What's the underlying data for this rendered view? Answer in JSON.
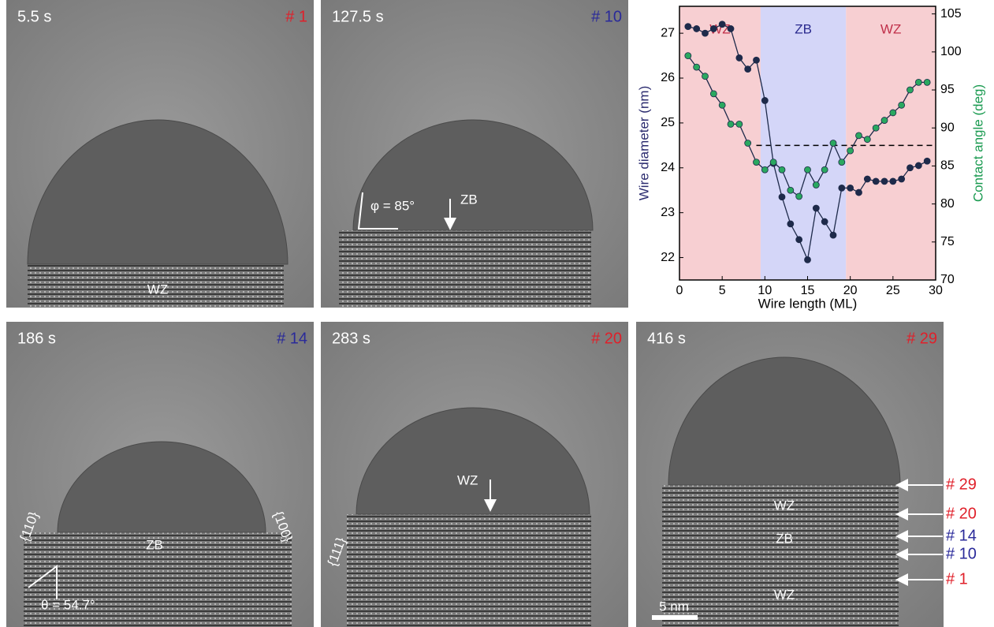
{
  "panels": [
    {
      "time": "5.5 s",
      "number": "# 1",
      "number_color": "#e0202a",
      "annotations": [
        "WZ"
      ]
    },
    {
      "time": "127.5 s",
      "number": "# 10",
      "number_color": "#2a2a9a",
      "annotations": [
        "φ = 85°",
        "ZB"
      ]
    },
    {
      "time": "186 s",
      "number": "# 14",
      "number_color": "#2a2a9a",
      "annotations": [
        "{110}",
        "{100}",
        "ZB",
        "θ = 54.7°"
      ]
    },
    {
      "time": "283 s",
      "number": "# 20",
      "number_color": "#e0202a",
      "annotations": [
        "{111}",
        "WZ"
      ]
    },
    {
      "time": "416 s",
      "number": "# 29",
      "number_color": "#e0202a",
      "annotations": [
        "WZ",
        "ZB",
        "WZ",
        "5 nm"
      ]
    }
  ],
  "side_labels": [
    {
      "text": "# 29",
      "color": "#e0202a"
    },
    {
      "text": "# 20",
      "color": "#e0202a"
    },
    {
      "text": "# 14",
      "color": "#2a2a9a"
    },
    {
      "text": "# 10",
      "color": "#2a2a9a"
    },
    {
      "text": "# 1",
      "color": "#e0202a"
    }
  ],
  "chart_data": {
    "type": "line",
    "xlabel": "Wire length (ML)",
    "ylabel": "Wire diameter (nm)",
    "y2label": "Contact angle (deg)",
    "ylabel_color": "#2a2a6e",
    "y2label_color": "#1a9a50",
    "x": [
      1,
      2,
      3,
      4,
      5,
      6,
      7,
      8,
      9,
      10,
      11,
      12,
      13,
      14,
      15,
      16,
      17,
      18,
      19,
      20,
      21,
      22,
      23,
      24,
      25,
      26,
      27,
      28,
      29
    ],
    "series": [
      {
        "color": "#1e2a4a",
        "marker_color": "#1e2a4a",
        "axis": "y",
        "values": [
          27.15,
          27.1,
          27.0,
          27.1,
          27.2,
          27.1,
          26.45,
          26.2,
          26.4,
          25.5,
          24.1,
          23.35,
          22.75,
          22.4,
          21.95,
          23.1,
          22.8,
          22.5,
          23.55,
          23.55,
          23.45,
          23.75,
          23.7,
          23.7,
          23.7,
          23.75,
          24.0,
          24.05,
          24.15
        ]
      },
      {
        "color": "#1e2a4a",
        "marker_color": "#2aa860",
        "axis": "y2",
        "values": [
          99.5,
          98,
          96.8,
          94.5,
          93,
          90.5,
          90.5,
          88,
          85.5,
          84.5,
          85.5,
          84.5,
          81.8,
          81,
          84.5,
          82.5,
          84.5,
          88,
          85.5,
          87,
          89,
          88.5,
          90,
          91,
          92,
          93,
          95,
          96,
          96
        ]
      }
    ],
    "regions": [
      {
        "label": "WZ",
        "start": 0,
        "end": 9.5,
        "color": "#f7cfd2",
        "label_color": "#c0304a"
      },
      {
        "label": "ZB",
        "start": 9.5,
        "end": 19.5,
        "color": "#d4d6f8",
        "label_color": "#2a2a8e"
      },
      {
        "label": "WZ",
        "start": 19.5,
        "end": 30,
        "color": "#f7cfd2",
        "label_color": "#c0304a"
      }
    ],
    "reference_line": 24.5,
    "xlim": [
      0,
      30
    ],
    "xticks": [
      0,
      5,
      10,
      15,
      20,
      25,
      30
    ],
    "ylim": [
      21.5,
      27.6
    ],
    "yticks": [
      22,
      23,
      24,
      25,
      26,
      27
    ],
    "y2lim": [
      70,
      106
    ],
    "y2ticks": [
      70,
      75,
      80,
      85,
      90,
      95,
      100,
      105
    ]
  }
}
